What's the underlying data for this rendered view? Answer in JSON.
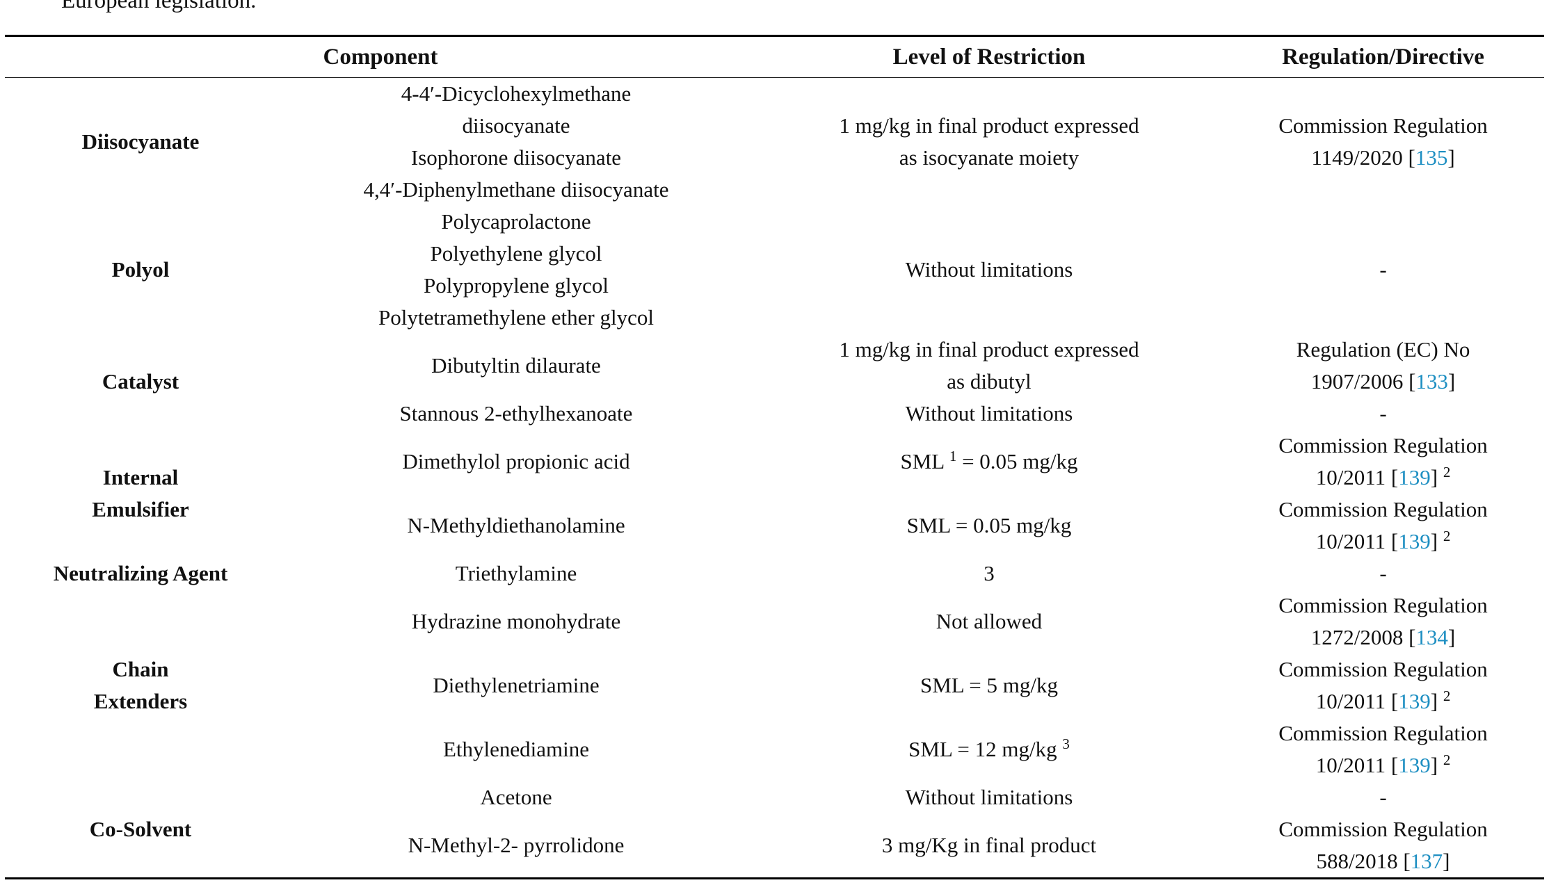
{
  "colors": {
    "link": "#1e8fc2",
    "text": "#111111"
  },
  "intro": {
    "text": "European legislation."
  },
  "table": {
    "headers": {
      "component": "Component",
      "restriction": "Level of Restriction",
      "regulation": "Regulation/Directive"
    },
    "groups": [
      {
        "category": "Diisocyanate",
        "rows": [
          {
            "component_lines": [
              "4-4′-Dicyclohexylmethane",
              "diisocyanate",
              "Isophorone diisocyanate",
              "4,4′-Diphenylmethane diisocyanate"
            ],
            "restriction_lines": [
              "1 mg/kg in final product expressed",
              "as isocyanate moiety"
            ],
            "regulation": {
              "line1": "Commission Regulation",
              "num": "1149/2020 [",
              "ref": "135",
              "close": "]",
              "sup": ""
            }
          }
        ]
      },
      {
        "category": "Polyol",
        "rows": [
          {
            "component_lines": [
              "Polycaprolactone",
              "Polyethylene glycol",
              "Polypropylene glycol",
              "Polytetramethylene ether glycol"
            ],
            "restriction_plain": "Without limitations",
            "regulation_dash": "-"
          }
        ]
      },
      {
        "category": "Catalyst",
        "rows": [
          {
            "component_lines": [
              "Dibutyltin dilaurate"
            ],
            "restriction_lines": [
              "1 mg/kg in final product expressed",
              "as dibutyl"
            ],
            "regulation": {
              "line1": "Regulation (EC) No",
              "num": "1907/2006 [",
              "ref": "133",
              "close": "]",
              "sup": ""
            }
          },
          {
            "component_lines": [
              "Stannous 2-ethylhexanoate"
            ],
            "restriction_plain": "Without limitations",
            "regulation_dash": "-"
          }
        ]
      },
      {
        "category": "Internal Emulsifier",
        "category_lines": [
          "Internal",
          "Emulsifier"
        ],
        "rows": [
          {
            "component_lines": [
              "Dimethylol propionic acid"
            ],
            "restriction_parts": {
              "pre": "SML ",
              "sup_a": "1",
              "post": " = 0.05 mg/kg",
              "sup_b": ""
            },
            "regulation": {
              "line1": "Commission Regulation",
              "num": "10/2011 [",
              "ref": "139",
              "close": "] ",
              "sup": "2"
            }
          },
          {
            "component_lines": [
              "N-Methyldiethanolamine"
            ],
            "restriction_plain": "SML = 0.05 mg/kg",
            "regulation": {
              "line1": "Commission Regulation",
              "num": "10/2011 [",
              "ref": "139",
              "close": "] ",
              "sup": "2"
            }
          }
        ]
      },
      {
        "category": "Neutralizing Agent",
        "rows": [
          {
            "component_lines": [
              "Triethylamine"
            ],
            "restriction_plain": "3",
            "regulation_dash": "-"
          }
        ]
      },
      {
        "category": "Chain Extenders",
        "category_lines": [
          "Chain",
          "Extenders"
        ],
        "rows": [
          {
            "component_lines": [
              "Hydrazine monohydrate"
            ],
            "restriction_plain": "Not allowed",
            "regulation": {
              "line1": "Commission Regulation",
              "num": "1272/2008 [",
              "ref": "134",
              "close": "]",
              "sup": ""
            }
          },
          {
            "component_lines": [
              "Diethylenetriamine"
            ],
            "restriction_plain": "SML = 5 mg/kg",
            "regulation": {
              "line1": "Commission Regulation",
              "num": "10/2011 [",
              "ref": "139",
              "close": "] ",
              "sup": "2"
            }
          },
          {
            "component_lines": [
              "Ethylenediamine"
            ],
            "restriction_parts": {
              "pre": "SML = 12 mg/kg ",
              "sup_a": "3",
              "post": "",
              "sup_b": ""
            },
            "regulation": {
              "line1": "Commission Regulation",
              "num": "10/2011 [",
              "ref": "139",
              "close": "] ",
              "sup": "2"
            }
          }
        ]
      },
      {
        "category": "Co-Solvent",
        "rows": [
          {
            "component_lines": [
              "Acetone"
            ],
            "restriction_plain": "Without limitations",
            "regulation_dash": "-"
          },
          {
            "component_lines": [
              "N-Methyl-2- pyrrolidone"
            ],
            "restriction_plain": "3 mg/Kg in final product",
            "regulation": {
              "line1": "Commission Regulation",
              "num": "588/2018 [",
              "ref": "137",
              "close": "]",
              "sup": ""
            }
          }
        ]
      }
    ]
  }
}
